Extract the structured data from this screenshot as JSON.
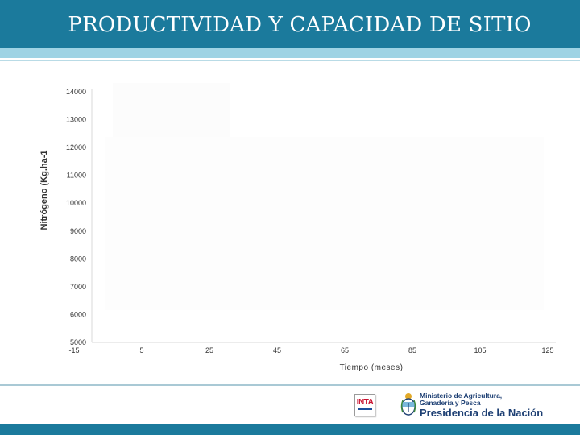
{
  "slide": {
    "title": "PRODUCTIVIDAD Y CAPACIDAD DE SITIO",
    "accent_color": "#1b7a9c",
    "accent_light_color": "#9ed3e4"
  },
  "chart_data": {
    "type": "line",
    "title": "",
    "xlabel": "Tiempo (meses)",
    "ylabel": "Nitrógeno (Kg.ha-1",
    "x_ticks": [
      "-15",
      "5",
      "25",
      "45",
      "65",
      "85",
      "105",
      "125"
    ],
    "y_ticks": [
      "14000",
      "13000",
      "12000",
      "11000",
      "10000",
      "9000",
      "8000",
      "7000",
      "6000",
      "5000"
    ],
    "xlim": [
      -15,
      125
    ],
    "ylim": [
      5000,
      14000
    ],
    "grid": false,
    "series": []
  },
  "footer": {
    "inta_logo_text": "INTA",
    "ministry_text": "Ministerio de Agricultura, Ganadería y Pesca",
    "presidencia_text": "Presidencia de la Nación",
    "seal_icon": "argentina-coat-of-arms-icon"
  }
}
